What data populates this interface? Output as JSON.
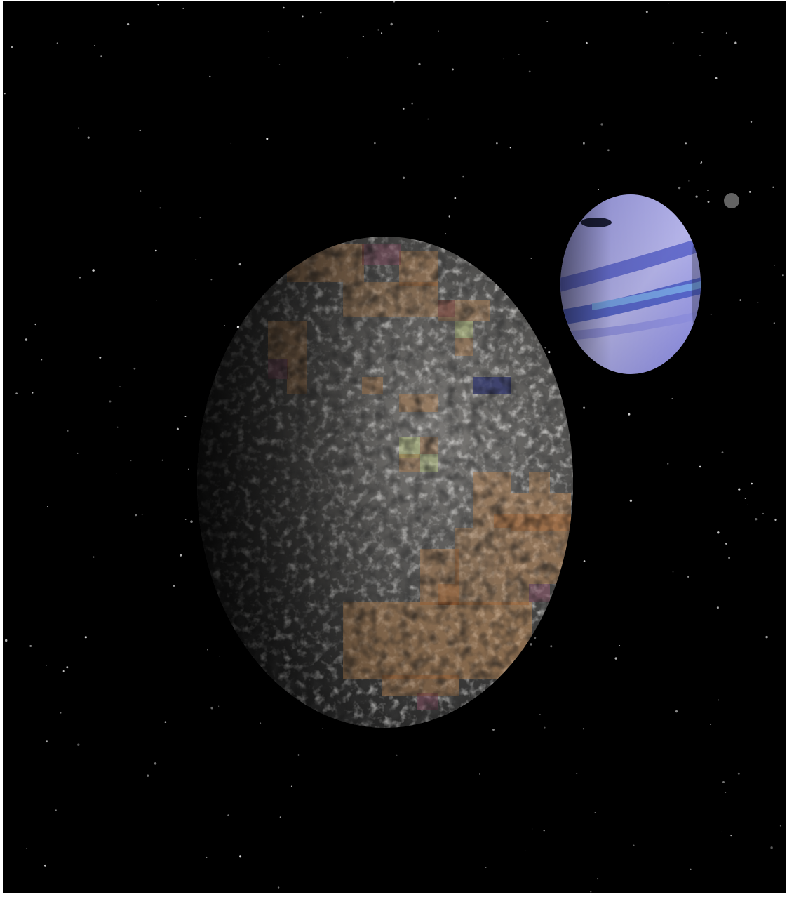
{
  "scene": {
    "background_color": "#000000",
    "frame_color": "#ffffff",
    "bodies": [
      {
        "name": "large-rocky-planet",
        "palette": {
          "dark": "#1d1d1d",
          "rock": "#5b5a58",
          "highlight": "#d8d6d2",
          "tan_overlay": "#c4905e",
          "mauve_overlay": "#8f5a6d",
          "lime_overlay": "#d8e89a",
          "navy_overlay": "#343a78"
        }
      },
      {
        "name": "banded-blue-planet",
        "palette": {
          "light": "#b9b8ee",
          "mid": "#8d8ee0",
          "band": "#4f5fc8",
          "band_bright": "#7fb3ee",
          "spot": "#1c1f3a"
        }
      },
      {
        "name": "small-distant-moon",
        "palette": {
          "surface": "#6e6e6e"
        }
      }
    ],
    "starfield": {
      "star_color": "#e8e8e8"
    }
  }
}
